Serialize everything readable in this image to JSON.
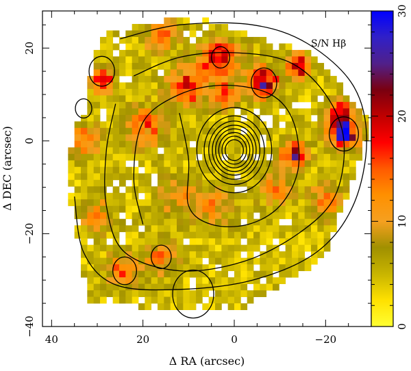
{
  "chart_data": {
    "type": "heatmap",
    "title": "",
    "annotation": "S/N Hβ",
    "xlabel": "Δ RA (arcsec)",
    "ylabel": "Δ DEC (arcsec)",
    "xlim": [
      42,
      -30
    ],
    "ylim": [
      -40,
      28
    ],
    "x_ticks": [
      40,
      20,
      0,
      -20
    ],
    "x_tick_labels": [
      "40",
      "20",
      "0",
      "−20"
    ],
    "y_ticks": [
      20,
      0,
      -20,
      -40
    ],
    "y_tick_labels": [
      "20",
      "0",
      "−20",
      "−40"
    ],
    "colorbar": {
      "min": 0,
      "max": 30,
      "ticks": [
        0,
        10,
        20,
        30
      ],
      "tick_labels": [
        "0",
        "10",
        "20",
        "30"
      ],
      "colors": [
        "#ffff33",
        "#ffe100",
        "#c8b400",
        "#a09000",
        "#f5a020",
        "#ff9000",
        "#ff5a00",
        "#ff0000",
        "#c00000",
        "#7a0010",
        "#50208a",
        "#3020c8",
        "#0000ff"
      ]
    },
    "field": {
      "shape": "hexagon",
      "vertices": [
        [
          29,
          23
        ],
        [
          10,
          27
        ],
        [
          -17,
          19
        ],
        [
          -30,
          4
        ],
        [
          -20,
          -25
        ],
        [
          0,
          -37
        ],
        [
          32,
          -35
        ],
        [
          37,
          -6
        ]
      ],
      "cell_size": 1.4,
      "background_value": 2
    },
    "hotspots": [
      {
        "x": -24,
        "y": 1.5,
        "value": 30,
        "sigma": 2.2
      },
      {
        "x": -6.5,
        "y": 12.5,
        "value": 28,
        "sigma": 2.2
      },
      {
        "x": -14,
        "y": 16,
        "value": 24,
        "sigma": 1.8
      },
      {
        "x": 29,
        "y": 13,
        "value": 24,
        "sigma": 1.6
      },
      {
        "x": -13,
        "y": -3,
        "value": 21,
        "sigma": 2.0
      },
      {
        "x": 3,
        "y": 18,
        "value": 18,
        "sigma": 3.0
      },
      {
        "x": 10,
        "y": 12,
        "value": 17,
        "sigma": 3.0
      },
      {
        "x": 16,
        "y": 23,
        "value": 14,
        "sigma": 2.5
      },
      {
        "x": 20,
        "y": 3,
        "value": 14,
        "sigma": 3.0
      },
      {
        "x": -23,
        "y": 6,
        "value": 18,
        "sigma": 2.0
      },
      {
        "x": 2,
        "y": 10,
        "value": 13,
        "sigma": 2.0
      },
      {
        "x": 33,
        "y": 0,
        "value": 12,
        "sigma": 2.5
      },
      {
        "x": 24,
        "y": -28,
        "value": 13,
        "sigma": 2.5
      },
      {
        "x": 16,
        "y": -25,
        "value": 12,
        "sigma": 2.5
      },
      {
        "x": 5,
        "y": -14,
        "value": 11,
        "sigma": 3.0
      },
      {
        "x": -9,
        "y": -10,
        "value": 11,
        "sigma": 2.5
      },
      {
        "x": 13,
        "y": -12,
        "value": 10,
        "sigma": 2.5
      },
      {
        "x": -20,
        "y": -13,
        "value": 11,
        "sigma": 2.5
      },
      {
        "x": 30,
        "y": -16,
        "value": 10,
        "sigma": 2.5
      }
    ],
    "contour_levels": [
      {
        "kind": "core",
        "cx": 0,
        "cy": -2,
        "radii": [
          2.0,
          2.7,
          3.4,
          4.1,
          4.8,
          5.6,
          6.6,
          8.2
        ]
      },
      {
        "kind": "spiral",
        "points": [
          [
            12,
            6
          ],
          [
            10,
            -4
          ],
          [
            10,
            -14
          ],
          [
            5,
            -18
          ],
          [
            -3,
            -18
          ],
          [
            -10,
            -14
          ],
          [
            -14,
            -6
          ],
          [
            -13,
            4
          ],
          [
            -8,
            10
          ],
          [
            2,
            12
          ],
          [
            12,
            10
          ],
          [
            20,
            4
          ],
          [
            22,
            -8
          ],
          [
            20,
            -18
          ]
        ]
      },
      {
        "kind": "spiral",
        "points": [
          [
            22,
            14
          ],
          [
            12,
            18
          ],
          [
            0,
            19
          ],
          [
            -12,
            17
          ],
          [
            -20,
            10
          ],
          [
            -24,
            0
          ],
          [
            -22,
            -12
          ],
          [
            -14,
            -20
          ],
          [
            -2,
            -26
          ],
          [
            12,
            -28
          ],
          [
            24,
            -24
          ],
          [
            28,
            -14
          ],
          [
            28,
            -2
          ],
          [
            26,
            8
          ]
        ]
      },
      {
        "kind": "spiral",
        "points": [
          [
            25,
            22
          ],
          [
            12,
            25
          ],
          [
            -4,
            25
          ],
          [
            -16,
            21
          ],
          [
            -26,
            12
          ],
          [
            -29,
            0
          ],
          [
            -26,
            -14
          ],
          [
            -18,
            -24
          ],
          [
            -4,
            -30
          ],
          [
            12,
            -32
          ],
          [
            26,
            -31
          ],
          [
            33,
            -24
          ],
          [
            35,
            -12
          ]
        ]
      },
      {
        "kind": "ring",
        "cx": 29,
        "cy": 15,
        "r": 2.8
      },
      {
        "kind": "ring",
        "cx": -24,
        "cy": 1.5,
        "r": 3.2
      },
      {
        "kind": "ring",
        "cx": -6.5,
        "cy": 12.5,
        "r": 2.8
      },
      {
        "kind": "ring",
        "cx": 3,
        "cy": 18,
        "r": 2.0
      },
      {
        "kind": "ring",
        "cx": 24,
        "cy": -28,
        "r": 2.6
      },
      {
        "kind": "ring",
        "cx": 16,
        "cy": -25,
        "r": 2.2
      },
      {
        "kind": "ring",
        "cx": 33,
        "cy": 7,
        "r": 1.8
      },
      {
        "kind": "ring",
        "cx": 9,
        "cy": -33,
        "r": 4.5
      }
    ]
  }
}
